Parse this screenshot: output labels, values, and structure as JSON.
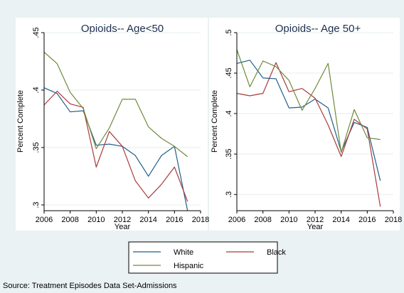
{
  "colors": {
    "background": "#eaf2f3",
    "white": "#1f5f8b",
    "black": "#a83a3a",
    "hispanic": "#6e8a3c"
  },
  "legend": {
    "items": [
      {
        "label": "White",
        "series": "white"
      },
      {
        "label": "Black",
        "series": "black"
      },
      {
        "label": "Hispanic",
        "series": "hispanic"
      }
    ]
  },
  "source": "Source: Treatment Episodes Data Set-Admissions",
  "chart_data": [
    {
      "type": "line",
      "title": "Opioids-- Age<50",
      "xlabel": "Year",
      "ylabel": "Percent Complete",
      "xlim": [
        2006,
        2018
      ],
      "ylim": [
        0.295,
        0.45
      ],
      "xticks": [
        2006,
        2008,
        2010,
        2012,
        2014,
        2016,
        2018
      ],
      "yticks": [
        0.3,
        0.35,
        0.4,
        0.45
      ],
      "ytick_labels": [
        ".3",
        ".35",
        ".4",
        ".45"
      ],
      "grid": true,
      "x": [
        2006,
        2007,
        2008,
        2009,
        2010,
        2011,
        2012,
        2013,
        2014,
        2015,
        2016,
        2017
      ],
      "series": [
        {
          "name": "White",
          "key": "white",
          "values": [
            0.402,
            0.397,
            0.381,
            0.382,
            0.352,
            0.353,
            0.351,
            0.343,
            0.325,
            0.343,
            0.351,
            0.295
          ]
        },
        {
          "name": "Black",
          "key": "black",
          "values": [
            0.387,
            0.399,
            0.388,
            0.385,
            0.333,
            0.364,
            0.351,
            0.321,
            0.306,
            0.318,
            0.333,
            0.303
          ]
        },
        {
          "name": "Hispanic",
          "key": "hispanic",
          "values": [
            0.433,
            0.423,
            0.398,
            0.384,
            0.349,
            0.367,
            0.392,
            0.392,
            0.368,
            0.358,
            0.351,
            0.342
          ]
        }
      ]
    },
    {
      "type": "line",
      "title": "Opioids-- Age 50+",
      "xlabel": "Year",
      "ylabel": "Percent Complete",
      "xlim": [
        2006,
        2018
      ],
      "ylim": [
        0.28,
        0.5
      ],
      "xticks": [
        2006,
        2008,
        2010,
        2012,
        2014,
        2016,
        2018
      ],
      "yticks": [
        0.3,
        0.35,
        0.4,
        0.45,
        0.5
      ],
      "ytick_labels": [
        ".3",
        ".35",
        ".4",
        ".45",
        ".5"
      ],
      "grid": true,
      "x": [
        2006,
        2007,
        2008,
        2009,
        2010,
        2011,
        2012,
        2013,
        2014,
        2015,
        2016,
        2017
      ],
      "series": [
        {
          "name": "White",
          "key": "white",
          "values": [
            0.462,
            0.466,
            0.444,
            0.443,
            0.407,
            0.408,
            0.418,
            0.407,
            0.353,
            0.389,
            0.383,
            0.317
          ]
        },
        {
          "name": "Black",
          "key": "black",
          "values": [
            0.425,
            0.422,
            0.425,
            0.463,
            0.427,
            0.431,
            0.419,
            0.386,
            0.347,
            0.393,
            0.381,
            0.285
          ]
        },
        {
          "name": "Hispanic",
          "key": "hispanic",
          "values": [
            0.479,
            0.433,
            0.465,
            0.458,
            0.441,
            0.404,
            0.431,
            0.462,
            0.352,
            0.405,
            0.37,
            0.368
          ]
        }
      ]
    }
  ]
}
